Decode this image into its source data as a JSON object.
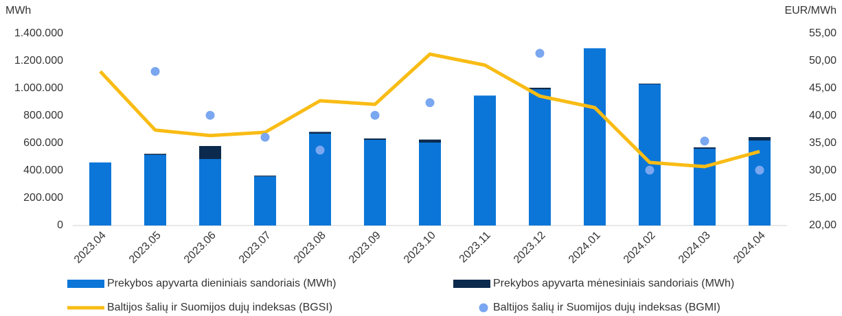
{
  "chart_data": {
    "type": "combo",
    "ylabel": "MWh",
    "y2label": "EUR/MWh",
    "categories": [
      "2023.04",
      "2023.05",
      "2023.06",
      "2023.07",
      "2023.08",
      "2023.09",
      "2023.10",
      "2023.11",
      "2023.12",
      "2024.01",
      "2024.02",
      "2024.03",
      "2024.04"
    ],
    "series": [
      {
        "name": "Prekybos apyvarta dieniniais sandoriais (MWh)",
        "type": "bar",
        "color": "#0b76d8",
        "values": [
          460000,
          515000,
          485000,
          358000,
          670000,
          625000,
          605000,
          948000,
          993000,
          1293000,
          1030000,
          560000,
          620000
        ]
      },
      {
        "name": "Prekybos apyvarta mėnesiniais sandoriais (MWh)",
        "type": "bar",
        "color": "#0c2a4d",
        "values": [
          0,
          8000,
          95000,
          6000,
          13000,
          10000,
          22000,
          0,
          12000,
          0,
          5000,
          10000,
          25000
        ]
      },
      {
        "name": "Baltijos šalių ir Suomijos dujų indeksas (BGSI)",
        "type": "line",
        "axis": "y2",
        "color": "#f9bc15",
        "values": [
          48.1,
          37.4,
          36.4,
          37.0,
          42.75,
          42.1,
          51.25,
          49.25,
          43.6,
          41.5,
          31.5,
          30.75,
          33.5
        ]
      },
      {
        "name": "Baltijos šalių ir Suomijos dujų indeksas (BGMI)",
        "type": "scatter",
        "axis": "y2",
        "color": "#7aa7f0",
        "values": [
          null,
          48.1,
          40.1,
          36.1,
          33.75,
          40.1,
          42.4,
          null,
          51.4,
          null,
          30.1,
          35.4,
          30.1
        ]
      }
    ],
    "ylim": [
      0,
      1400000
    ],
    "yticks": [
      0,
      {
        "value": 200000,
        "label": "200.000"
      },
      {
        "value": 400000,
        "label": "400.000"
      },
      {
        "value": 600000,
        "label": "600.000"
      },
      {
        "value": 800000,
        "label": "800.000"
      },
      {
        "value": 1000000,
        "label": "1.000.000"
      },
      {
        "value": 1200000,
        "label": "1.200.000"
      },
      {
        "value": 1400000,
        "label": "1.400.000"
      }
    ],
    "y2lim": [
      20,
      55
    ],
    "y2ticks": [
      {
        "value": 20,
        "label": "20,00"
      },
      {
        "value": 25,
        "label": "25,00"
      },
      {
        "value": 30,
        "label": "30,00"
      },
      {
        "value": 35,
        "label": "35,00"
      },
      {
        "value": 40,
        "label": "40,00"
      },
      {
        "value": 45,
        "label": "45,00"
      },
      {
        "value": 50,
        "label": "50,00"
      },
      {
        "value": 55,
        "label": "55,00"
      }
    ],
    "stacked": true
  }
}
